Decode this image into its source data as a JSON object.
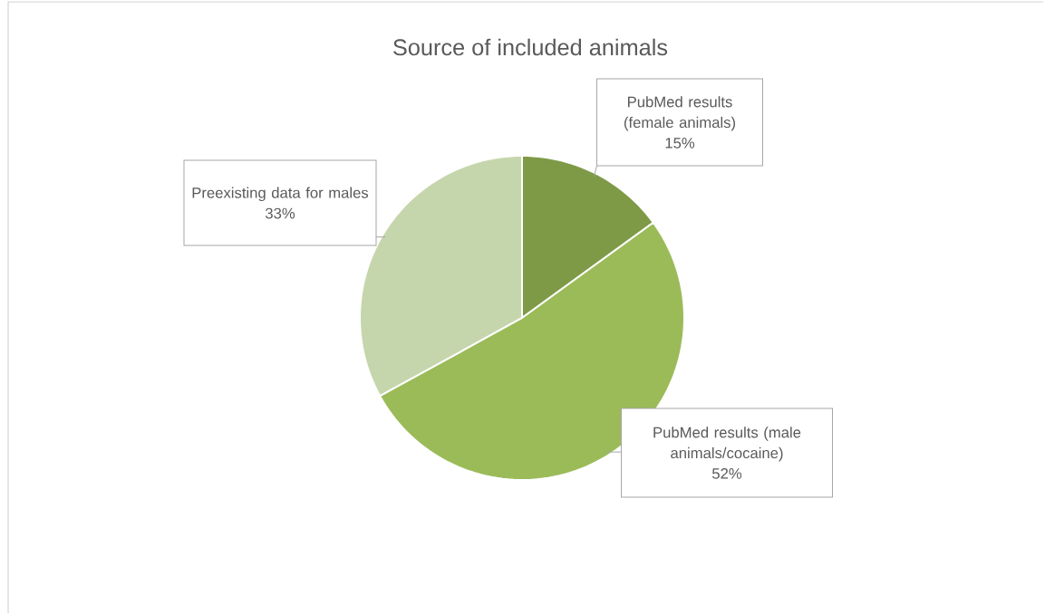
{
  "chart_data": {
    "type": "pie",
    "title": "Source of included animals",
    "categories": [
      "PubMed results (female animals)",
      "PubMed results (male animals/cocaine)",
      "Preexisting data for males"
    ],
    "values": [
      15,
      52,
      33
    ],
    "value_labels": [
      "15%",
      "52%",
      "33%"
    ],
    "colors": [
      "#7e9a47",
      "#9bbb59",
      "#c6d6ac"
    ]
  }
}
